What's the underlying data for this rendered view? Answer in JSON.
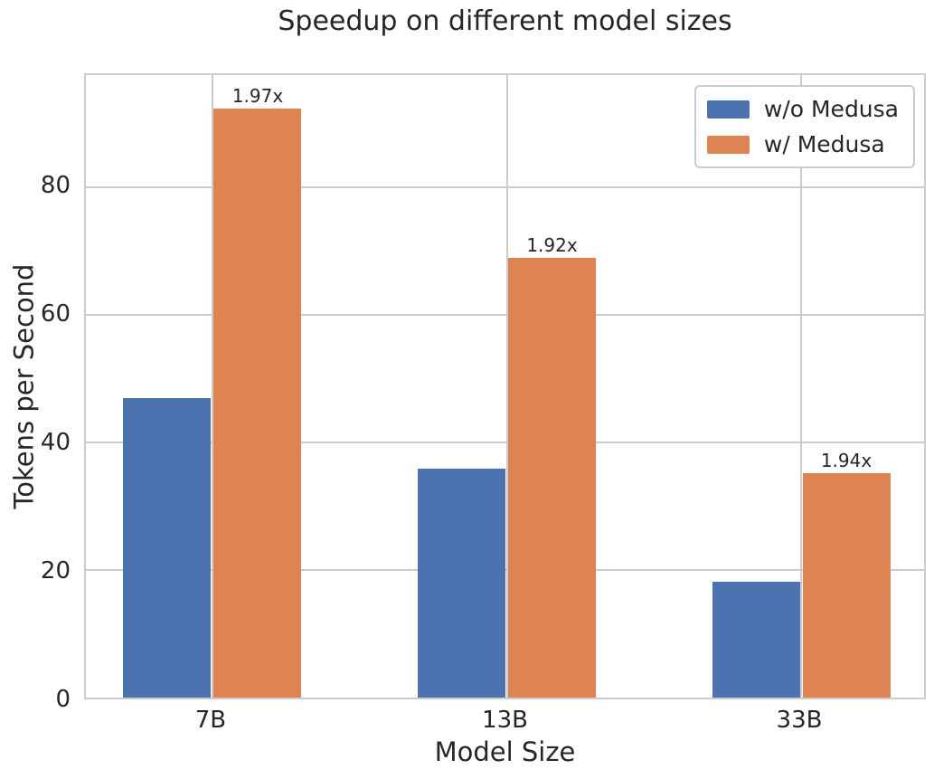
{
  "chart_data": {
    "type": "bar",
    "title": "Speedup on different model sizes",
    "xlabel": "Model Size",
    "ylabel": "Tokens per Second",
    "categories": [
      "7B",
      "13B",
      "33B"
    ],
    "series": [
      {
        "name": "w/o Medusa",
        "color": "#4C72B0",
        "values": [
          46.9,
          35.9,
          18.1
        ]
      },
      {
        "name": "w/ Medusa",
        "color": "#DD8452",
        "values": [
          92.3,
          68.9,
          35.1
        ],
        "bar_labels": [
          "1.97x",
          "1.92x",
          "1.94x"
        ]
      }
    ],
    "yticks": [
      0,
      20,
      40,
      60,
      80
    ],
    "ylim": [
      0,
      97.5
    ],
    "xlim": [
      -0.43,
      2.43
    ],
    "grid": true,
    "legend_position": "upper right",
    "style": {
      "grid_color": "#cccccc",
      "text_color": "#262626",
      "background": "#ffffff"
    }
  }
}
